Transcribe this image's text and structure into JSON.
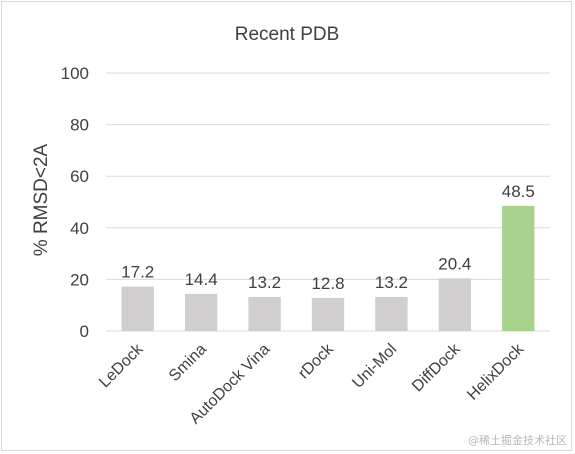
{
  "chart_data": {
    "type": "bar",
    "title": "Recent PDB",
    "xlabel": "",
    "ylabel": "% RMSD<2A",
    "ylim": [
      0,
      100
    ],
    "yticks": [
      0,
      20,
      40,
      60,
      80,
      100
    ],
    "grid": true,
    "legend": "none",
    "categories": [
      "LeDock",
      "Smina",
      "AutoDock Vina",
      "rDock",
      "Uni-Mol",
      "DiffDock",
      "HelixDock"
    ],
    "values": [
      17.2,
      14.4,
      13.2,
      12.8,
      13.2,
      20.4,
      48.5
    ],
    "data_labels": [
      "17.2",
      "14.4",
      "13.2",
      "12.8",
      "13.2",
      "20.4",
      "48.5"
    ],
    "colors": {
      "default_bar": "#d0cece",
      "highlight_bar": "#a9d18e",
      "grid": "#d9d9d9",
      "text": "#404040"
    },
    "highlight_index": 6
  },
  "watermark": "@稀土掘金技术社区"
}
